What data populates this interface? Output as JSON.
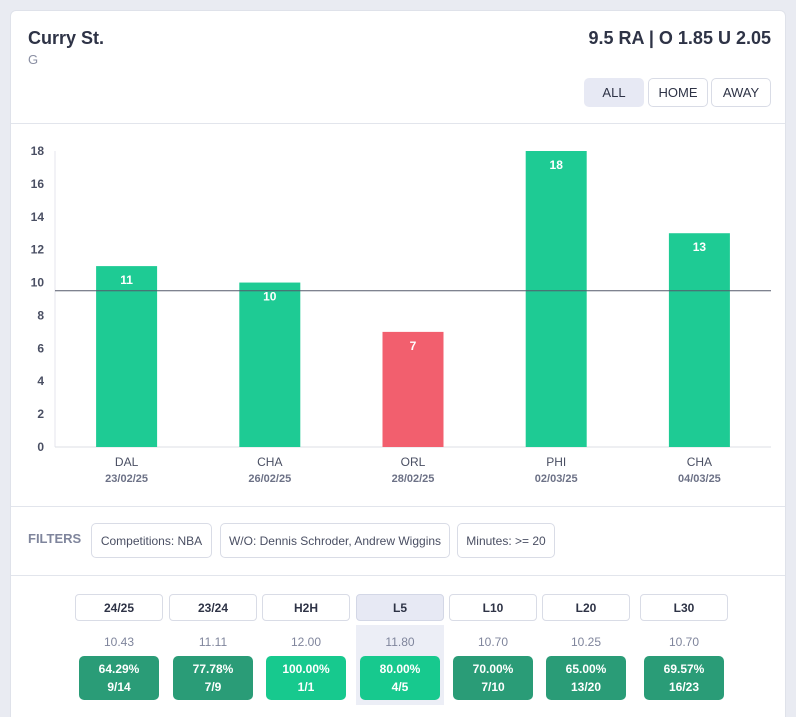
{
  "header": {
    "player_name": "Curry St.",
    "position": "G",
    "line_info": "9.5 RA | O 1.85 U 2.05",
    "venue_buttons": [
      "ALL",
      "HOME",
      "AWAY"
    ],
    "active_venue": "ALL"
  },
  "colors": {
    "over": "#1ecb94",
    "under": "#f25f6e",
    "hit_dark": "#2a9c77",
    "hit_bright": "#17c98e"
  },
  "chart_data": {
    "type": "bar",
    "title": "",
    "xlabel": "",
    "ylabel": "",
    "ylim": [
      0,
      18
    ],
    "yticks": [
      0,
      2,
      4,
      6,
      8,
      10,
      12,
      14,
      16,
      18
    ],
    "line_value": 9.5,
    "categories": [
      {
        "team": "DAL",
        "date": "23/02/25"
      },
      {
        "team": "CHA",
        "date": "26/02/25"
      },
      {
        "team": "ORL",
        "date": "28/02/25"
      },
      {
        "team": "PHI",
        "date": "02/03/25"
      },
      {
        "team": "CHA",
        "date": "04/03/25"
      }
    ],
    "values": [
      11,
      10,
      7,
      18,
      13
    ]
  },
  "filters": {
    "label": "FILTERS",
    "chips": [
      "Competitions: NBA",
      "W/O: Dennis Schroder, Andrew Wiggins",
      "Minutes: >= 20"
    ]
  },
  "stats": {
    "active_period": "L5",
    "periods": [
      {
        "label": "24/25",
        "avg": "10.43",
        "pct": "64.29%",
        "frac": "9/14",
        "tone": "dark"
      },
      {
        "label": "23/24",
        "avg": "11.11",
        "pct": "77.78%",
        "frac": "7/9",
        "tone": "dark"
      },
      {
        "label": "H2H",
        "avg": "12.00",
        "pct": "100.00%",
        "frac": "1/1",
        "tone": "bright"
      },
      {
        "label": "L5",
        "avg": "11.80",
        "pct": "80.00%",
        "frac": "4/5",
        "tone": "bright"
      },
      {
        "label": "L10",
        "avg": "10.70",
        "pct": "70.00%",
        "frac": "7/10",
        "tone": "dark"
      },
      {
        "label": "L20",
        "avg": "10.25",
        "pct": "65.00%",
        "frac": "13/20",
        "tone": "dark"
      },
      {
        "label": "L30",
        "avg": "10.70",
        "pct": "69.57%",
        "frac": "16/23",
        "tone": "dark"
      }
    ]
  }
}
